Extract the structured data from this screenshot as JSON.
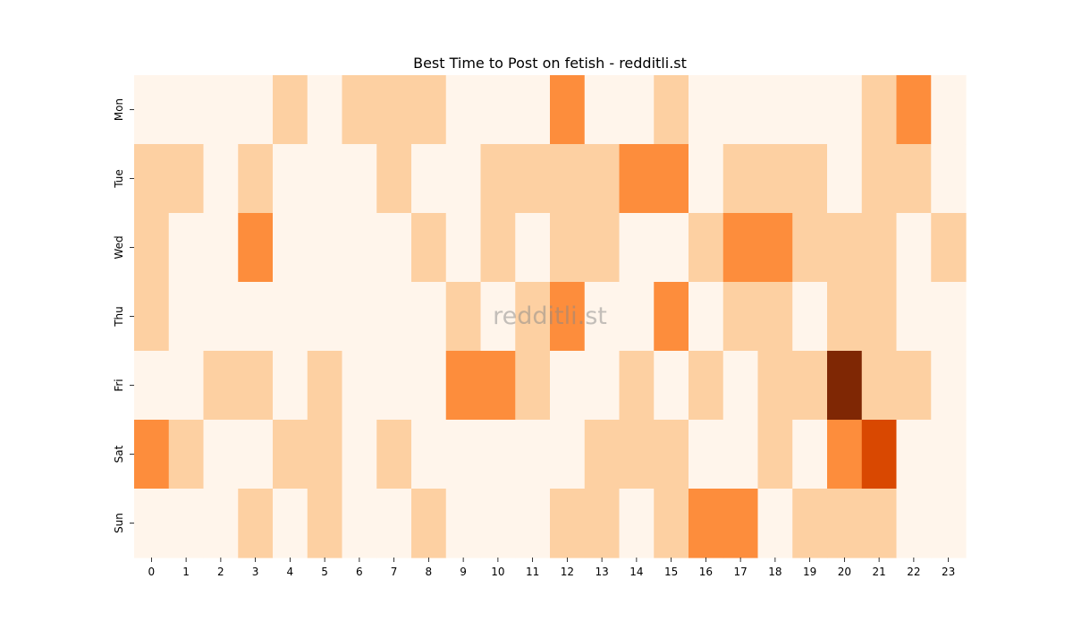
{
  "chart_data": {
    "type": "heatmap",
    "title": "Best Time to Post on fetish - redditli.st",
    "xlabel": "",
    "ylabel": "",
    "x_categories": [
      "0",
      "1",
      "2",
      "3",
      "4",
      "5",
      "6",
      "7",
      "8",
      "9",
      "10",
      "11",
      "12",
      "13",
      "14",
      "15",
      "16",
      "17",
      "18",
      "19",
      "20",
      "21",
      "22",
      "23"
    ],
    "y_categories": [
      "Mon",
      "Tue",
      "Wed",
      "Thu",
      "Fri",
      "Sat",
      "Sun"
    ],
    "values": [
      [
        0,
        0,
        0,
        0,
        1,
        0,
        1,
        1,
        1,
        0,
        0,
        0,
        2,
        0,
        0,
        1,
        0,
        0,
        0,
        0,
        0,
        1,
        2,
        0
      ],
      [
        1,
        1,
        0,
        1,
        0,
        0,
        0,
        1,
        0,
        0,
        1,
        1,
        1,
        1,
        2,
        2,
        0,
        1,
        1,
        1,
        0,
        1,
        1,
        0
      ],
      [
        1,
        0,
        0,
        2,
        0,
        0,
        0,
        0,
        1,
        0,
        1,
        0,
        1,
        1,
        0,
        0,
        1,
        2,
        2,
        1,
        1,
        1,
        0,
        1
      ],
      [
        1,
        0,
        0,
        0,
        0,
        0,
        0,
        0,
        0,
        1,
        0,
        1,
        2,
        0,
        0,
        2,
        0,
        1,
        1,
        0,
        1,
        1,
        0,
        0
      ],
      [
        0,
        0,
        1,
        1,
        0,
        1,
        0,
        0,
        0,
        2,
        2,
        1,
        0,
        0,
        1,
        0,
        1,
        0,
        1,
        1,
        4,
        1,
        1,
        0
      ],
      [
        2,
        1,
        0,
        0,
        1,
        1,
        0,
        1,
        0,
        0,
        0,
        0,
        0,
        1,
        1,
        1,
        0,
        0,
        1,
        0,
        2,
        3,
        0,
        0
      ],
      [
        0,
        0,
        0,
        1,
        0,
        1,
        0,
        0,
        1,
        0,
        0,
        0,
        1,
        1,
        0,
        1,
        2,
        2,
        0,
        1,
        1,
        1,
        0,
        0
      ]
    ],
    "vmin": 0,
    "vmax": 4,
    "colormap": "Oranges",
    "color_levels": [
      "#fff5eb",
      "#fdd0a2",
      "#fd8d3c",
      "#d94801",
      "#7f2704"
    ],
    "colorbar": false,
    "grid": false,
    "watermark": "redditli.st"
  }
}
